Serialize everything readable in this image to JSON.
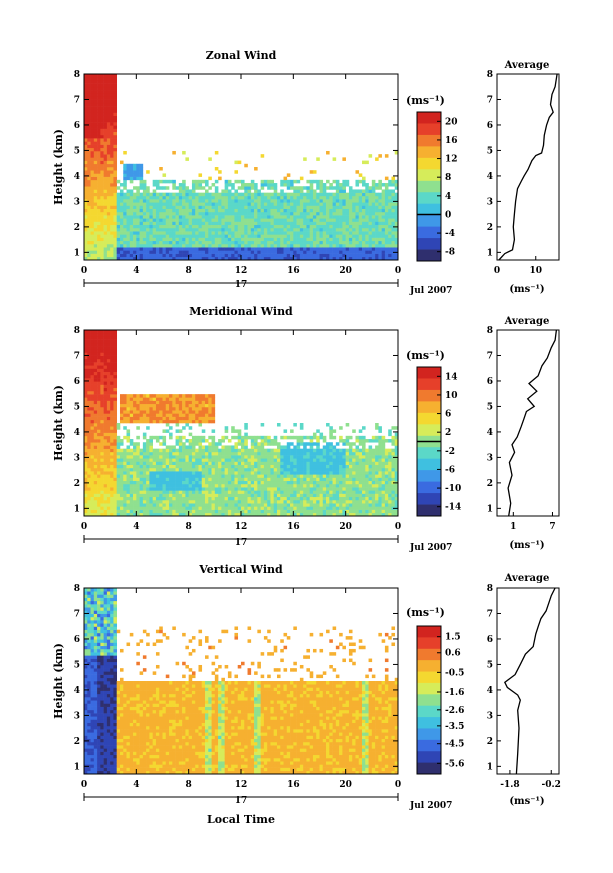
{
  "figure": {
    "xlabel": "Local Time",
    "date_label": "Jul 2007",
    "day_label": "17",
    "height_label": "Height (km)",
    "unit_label": "(ms⁻¹)",
    "average_title": "Average"
  },
  "colormap": [
    "#2f2f6e",
    "#2f45b5",
    "#3a6be0",
    "#3f98e8",
    "#3fc0e0",
    "#5bd8c8",
    "#8fe08f",
    "#d6ec5a",
    "#f4d830",
    "#f6b030",
    "#f07a2e",
    "#e6402a",
    "#d2241f"
  ],
  "chart_data": [
    {
      "type": "heatmap",
      "title": "Zonal Wind",
      "x_ticks": [
        "0",
        "4",
        "8",
        "12",
        "16",
        "20",
        "0"
      ],
      "xlim": [
        0,
        24
      ],
      "y_ticks": [
        "1",
        "2",
        "3",
        "4",
        "5",
        "6",
        "7",
        "8"
      ],
      "ylim": [
        0.7,
        8
      ],
      "colorbar_ticks": [
        "20",
        "16",
        "12",
        "8",
        "4",
        "0",
        "-4",
        "-8"
      ],
      "colorbar_range": [
        -10,
        22
      ],
      "zero_contour": true,
      "profile": {
        "x_ticks": [
          "0",
          "10"
        ],
        "xlim": [
          0,
          16
        ],
        "points": [
          [
            0.5,
            0.7
          ],
          [
            2,
            0.95
          ],
          [
            4,
            1.1
          ],
          [
            4.5,
            1.5
          ],
          [
            4.2,
            2
          ],
          [
            4.5,
            2.5
          ],
          [
            4.8,
            3
          ],
          [
            5.3,
            3.5
          ],
          [
            6.3,
            3.8
          ],
          [
            7,
            4
          ],
          [
            8,
            4.25
          ],
          [
            9,
            4.6
          ],
          [
            10,
            4.8
          ],
          [
            11.5,
            4.9
          ],
          [
            12,
            5.2
          ],
          [
            12.2,
            5.6
          ],
          [
            12.8,
            6
          ],
          [
            13.5,
            6.3
          ],
          [
            14.5,
            6.5
          ],
          [
            13.8,
            6.8
          ],
          [
            14.2,
            7.2
          ],
          [
            15,
            7.5
          ],
          [
            15.5,
            8
          ]
        ]
      }
    },
    {
      "type": "heatmap",
      "title": "Meridional Wind",
      "x_ticks": [
        "0",
        "4",
        "8",
        "12",
        "16",
        "20",
        "0"
      ],
      "xlim": [
        0,
        24
      ],
      "y_ticks": [
        "1",
        "2",
        "3",
        "4",
        "5",
        "6",
        "7",
        "8"
      ],
      "ylim": [
        0.7,
        8
      ],
      "colorbar_ticks": [
        "14",
        "10",
        "6",
        "2",
        "-2",
        "-6",
        "-10",
        "-14"
      ],
      "colorbar_range": [
        -16,
        16
      ],
      "zero_contour": true,
      "profile": {
        "x_ticks": [
          "1",
          "7"
        ],
        "xlim": [
          -1.5,
          8
        ],
        "points": [
          [
            0.3,
            0.7
          ],
          [
            0.6,
            1.2
          ],
          [
            0.2,
            1.8
          ],
          [
            0.8,
            2.3
          ],
          [
            0.4,
            2.8
          ],
          [
            1.2,
            3.2
          ],
          [
            0.8,
            3.5
          ],
          [
            1.6,
            3.8
          ],
          [
            2.2,
            4.2
          ],
          [
            2.6,
            4.5
          ],
          [
            3,
            4.8
          ],
          [
            4.2,
            5
          ],
          [
            3.2,
            5.3
          ],
          [
            4.6,
            5.6
          ],
          [
            3.4,
            5.9
          ],
          [
            4.8,
            6.2
          ],
          [
            5.4,
            6.6
          ],
          [
            6.2,
            6.9
          ],
          [
            6.8,
            7.3
          ],
          [
            7.4,
            7.6
          ],
          [
            7.6,
            8
          ]
        ]
      }
    },
    {
      "type": "heatmap",
      "title": "Vertical Wind",
      "x_ticks": [
        "0",
        "4",
        "8",
        "12",
        "16",
        "20",
        "0"
      ],
      "xlim": [
        0,
        24
      ],
      "y_ticks": [
        "1",
        "2",
        "3",
        "4",
        "5",
        "6",
        "7",
        "8"
      ],
      "ylim": [
        0.7,
        8
      ],
      "colorbar_ticks": [
        "1.5",
        "0.6",
        "-0.5",
        "-1.6",
        "-2.6",
        "-3.5",
        "-4.5",
        "-5.6"
      ],
      "colorbar_range": [
        -6.2,
        2.1
      ],
      "zero_contour": false,
      "profile": {
        "x_ticks": [
          "-1.8",
          "-0.2"
        ],
        "xlim": [
          -2.3,
          0.1
        ],
        "points": [
          [
            -1.55,
            0.7
          ],
          [
            -1.5,
            1.5
          ],
          [
            -1.45,
            2.5
          ],
          [
            -1.5,
            3.2
          ],
          [
            -1.4,
            3.6
          ],
          [
            -1.5,
            3.8
          ],
          [
            -1.9,
            4.1
          ],
          [
            -2.0,
            4.3
          ],
          [
            -1.6,
            4.6
          ],
          [
            -1.4,
            5
          ],
          [
            -1.2,
            5.4
          ],
          [
            -0.9,
            5.7
          ],
          [
            -0.8,
            6.2
          ],
          [
            -0.7,
            6.5
          ],
          [
            -0.6,
            6.8
          ],
          [
            -0.4,
            7.1
          ],
          [
            -0.3,
            7.4
          ],
          [
            -0.2,
            7.7
          ],
          [
            -0.05,
            8
          ]
        ]
      }
    }
  ]
}
